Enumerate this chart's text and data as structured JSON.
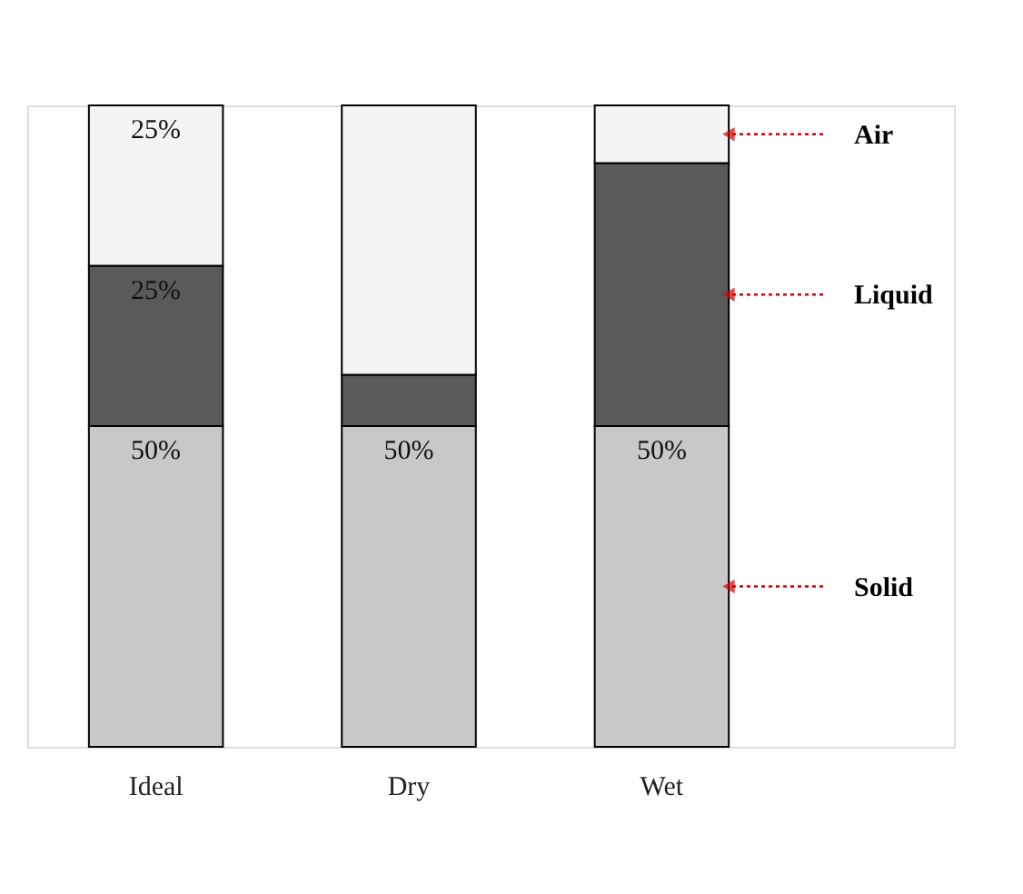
{
  "chart_data": {
    "type": "bar",
    "stacked": true,
    "ylim": [
      0,
      100
    ],
    "tick_labels": "x",
    "categories": [
      "Ideal",
      "Dry",
      "Wet"
    ],
    "series": [
      {
        "name": "Solid",
        "color": "#c8c8c8",
        "values": [
          50,
          50,
          50
        ],
        "value_labels": [
          "50%",
          "50%",
          "50%"
        ]
      },
      {
        "name": "Liquid",
        "color": "#5a5a5a",
        "values": [
          25,
          8,
          41
        ],
        "value_labels": [
          "25%",
          null,
          null
        ]
      },
      {
        "name": "Air",
        "color": "#f4f4f4",
        "values": [
          25,
          42,
          9
        ],
        "value_labels": [
          "25%",
          null,
          null
        ]
      }
    ]
  }
}
